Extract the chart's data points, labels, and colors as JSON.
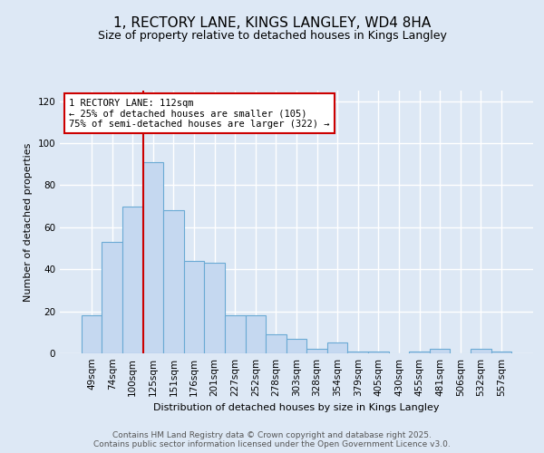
{
  "title": "1, RECTORY LANE, KINGS LANGLEY, WD4 8HA",
  "subtitle": "Size of property relative to detached houses in Kings Langley",
  "xlabel": "Distribution of detached houses by size in Kings Langley",
  "ylabel": "Number of detached properties",
  "categories": [
    "49sqm",
    "74sqm",
    "100sqm",
    "125sqm",
    "151sqm",
    "176sqm",
    "201sqm",
    "227sqm",
    "252sqm",
    "278sqm",
    "303sqm",
    "328sqm",
    "354sqm",
    "379sqm",
    "405sqm",
    "430sqm",
    "455sqm",
    "481sqm",
    "506sqm",
    "532sqm",
    "557sqm"
  ],
  "values": [
    18,
    53,
    70,
    91,
    68,
    44,
    43,
    18,
    18,
    9,
    7,
    2,
    5,
    1,
    1,
    0,
    1,
    2,
    0,
    2,
    1
  ],
  "bar_color": "#c5d8f0",
  "bar_edge_color": "#6aaad4",
  "background_color": "#dde8f5",
  "grid_color": "#ffffff",
  "vline_x": 2.5,
  "vline_color": "#cc0000",
  "annotation_text": "1 RECTORY LANE: 112sqm\n← 25% of detached houses are smaller (105)\n75% of semi-detached houses are larger (322) →",
  "annotation_box_facecolor": "#ffffff",
  "annotation_box_edgecolor": "#cc0000",
  "footer_line1": "Contains HM Land Registry data © Crown copyright and database right 2025.",
  "footer_line2": "Contains public sector information licensed under the Open Government Licence v3.0.",
  "ylim": [
    0,
    125
  ],
  "yticks": [
    0,
    20,
    40,
    60,
    80,
    100,
    120
  ],
  "title_fontsize": 11,
  "subtitle_fontsize": 9,
  "footer_fontsize": 6.5,
  "tick_fontsize": 7.5,
  "ylabel_fontsize": 8,
  "xlabel_fontsize": 8
}
